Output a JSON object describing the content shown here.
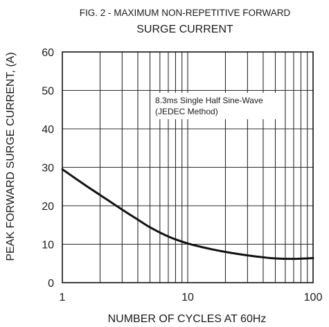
{
  "chart_data": {
    "type": "line",
    "title_line1": "FIG. 2 - MAXIMUM NON-REPETITIVE FORWARD",
    "title_line2": "SURGE CURRENT",
    "xlabel": "NUMBER OF CYCLES AT 60Hz",
    "ylabel": "PEAK FORWARD SURGE CURRENT, (A)",
    "x_scale": "log",
    "xlim": [
      1,
      100
    ],
    "ylim": [
      0,
      60
    ],
    "grid": true,
    "x_ticks": [
      1,
      10,
      100
    ],
    "x_tick_labels": [
      "1",
      "10",
      "100"
    ],
    "y_ticks": [
      0,
      10,
      20,
      30,
      40,
      50,
      60
    ],
    "y_tick_labels": [
      "0",
      "10",
      "20",
      "30",
      "40",
      "50",
      "60"
    ],
    "annotation_line1": "8.3ms Single Half Sine-Wave",
    "annotation_line2": "(JEDEC Method)",
    "series": [
      {
        "x": [
          1,
          1.5,
          2,
          3,
          4,
          5,
          7,
          10,
          15,
          20,
          30,
          40,
          50,
          70,
          100
        ],
        "y": [
          29.5,
          25.5,
          22.8,
          19,
          16.4,
          14.4,
          12,
          10.2,
          8.8,
          8,
          7.1,
          6.6,
          6.3,
          6.2,
          6.4
        ]
      }
    ],
    "line_color": "#111111",
    "grid_color": "#2b2b2b"
  }
}
